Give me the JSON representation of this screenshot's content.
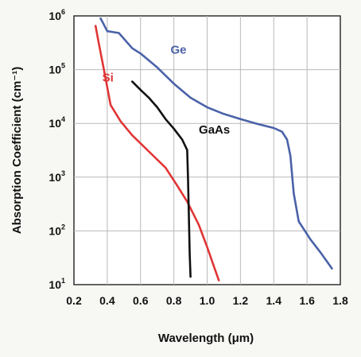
{
  "chart_data": {
    "type": "line",
    "xlabel": "Wavelength (μm)",
    "ylabel": "Absorption Coefficient (cm⁻¹)",
    "xlim": [
      0.2,
      1.8
    ],
    "ylim": [
      10,
      1000000
    ],
    "yscale": "log",
    "x_ticks": [
      "0.2",
      "0.4",
      "0.6",
      "0.8",
      "1.0",
      "1.2",
      "1.4",
      "1.6",
      "1.8"
    ],
    "y_ticks": [
      {
        "value": 10,
        "base": "10",
        "exp": "1"
      },
      {
        "value": 100,
        "base": "10",
        "exp": "2"
      },
      {
        "value": 1000,
        "base": "10",
        "exp": "3"
      },
      {
        "value": 10000,
        "base": "10",
        "exp": "4"
      },
      {
        "value": 100000,
        "base": "10",
        "exp": "5"
      },
      {
        "value": 1000000,
        "base": "10",
        "exp": "6"
      }
    ],
    "grid": true,
    "series": [
      {
        "name": "Ge",
        "color": "#4a62a8",
        "label_at": [
          0.78,
          200000
        ],
        "points": [
          [
            0.36,
            900000
          ],
          [
            0.4,
            520000
          ],
          [
            0.47,
            480000
          ],
          [
            0.55,
            250000
          ],
          [
            0.6,
            200000
          ],
          [
            0.7,
            110000
          ],
          [
            0.8,
            55000
          ],
          [
            0.9,
            30000
          ],
          [
            1.0,
            20000
          ],
          [
            1.1,
            15000
          ],
          [
            1.2,
            12000
          ],
          [
            1.3,
            9800
          ],
          [
            1.4,
            8200
          ],
          [
            1.45,
            7000
          ],
          [
            1.48,
            5000
          ],
          [
            1.5,
            2500
          ],
          [
            1.52,
            500
          ],
          [
            1.55,
            150
          ],
          [
            1.62,
            70
          ],
          [
            1.68,
            40
          ],
          [
            1.75,
            20
          ]
        ]
      },
      {
        "name": "Si",
        "color": "#e03535",
        "label_at": [
          0.37,
          60000
        ],
        "points": [
          [
            0.33,
            650000
          ],
          [
            0.35,
            300000
          ],
          [
            0.38,
            100000
          ],
          [
            0.42,
            22000
          ],
          [
            0.48,
            11000
          ],
          [
            0.55,
            6000
          ],
          [
            0.65,
            3000
          ],
          [
            0.75,
            1500
          ],
          [
            0.82,
            700
          ],
          [
            0.88,
            350
          ],
          [
            0.95,
            130
          ],
          [
            1.0,
            50
          ],
          [
            1.05,
            18
          ],
          [
            1.07,
            12
          ]
        ]
      },
      {
        "name": "GaAs",
        "color": "#111111",
        "label_at": [
          0.95,
          6500
        ],
        "points": [
          [
            0.55,
            60000
          ],
          [
            0.6,
            42000
          ],
          [
            0.65,
            30000
          ],
          [
            0.7,
            20000
          ],
          [
            0.75,
            12000
          ],
          [
            0.8,
            8000
          ],
          [
            0.85,
            5000
          ],
          [
            0.88,
            3200
          ],
          [
            0.885,
            1000
          ],
          [
            0.89,
            200
          ],
          [
            0.895,
            40
          ],
          [
            0.9,
            14
          ]
        ]
      }
    ]
  }
}
